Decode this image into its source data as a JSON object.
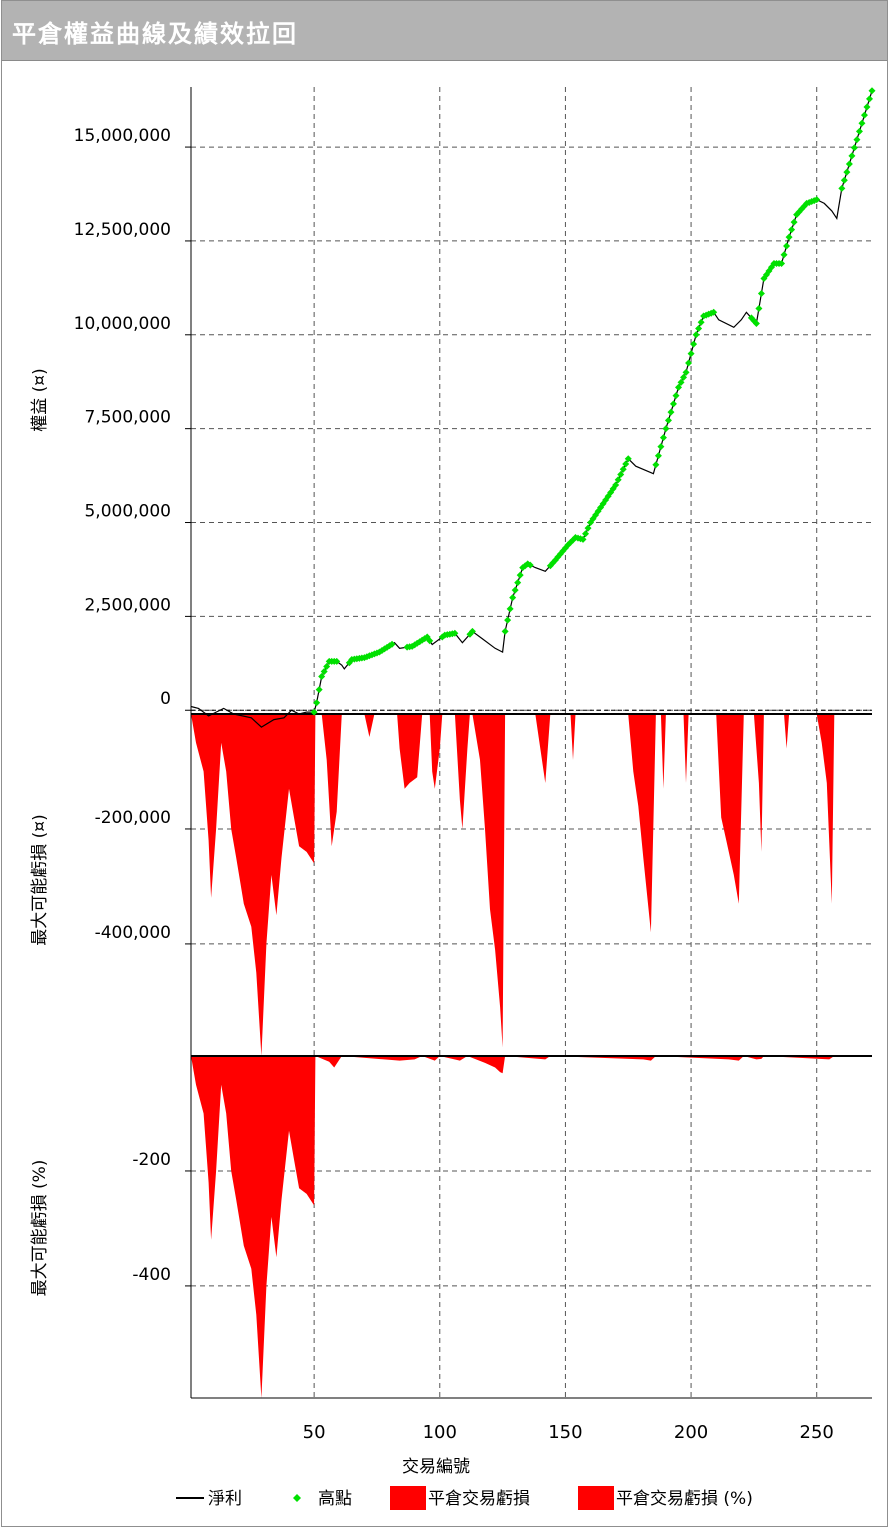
{
  "window": {
    "title": "平倉權益曲線及績效拉回"
  },
  "chart_data": {
    "type": "line",
    "x_axis": {
      "label": "交易編號",
      "min": 1,
      "max": 272,
      "ticks": [
        50,
        100,
        150,
        200,
        250
      ],
      "tick_labels": [
        "50",
        "100",
        "150",
        "200",
        "250"
      ]
    },
    "panels": [
      {
        "name": "equity",
        "ylabel": "權益 (¤)",
        "ylim": [
          -100000,
          16600000
        ],
        "ticks": [
          0,
          2500000,
          5000000,
          7500000,
          10000000,
          12500000,
          15000000
        ],
        "tick_labels": [
          "0",
          "2,500,000",
          "5,000,000",
          "7,500,000",
          "10,000,000",
          "12,500,000",
          "15,000,000"
        ]
      },
      {
        "name": "max_drawdown_amount",
        "ylabel": "最大可能虧損 (¤)",
        "ylim": [
          -595000,
          0
        ],
        "ticks": [
          -200000,
          -400000
        ],
        "tick_labels": [
          "-200,000",
          "-400,000"
        ]
      },
      {
        "name": "max_drawdown_percent",
        "ylabel": "最大可能虧損 (%)",
        "ylim": [
          -595,
          0
        ],
        "ticks": [
          -200,
          -400
        ],
        "tick_labels": [
          "-200",
          "-400"
        ]
      }
    ],
    "equity_path": [
      [
        1,
        100000
      ],
      [
        4,
        50000
      ],
      [
        8,
        -150000
      ],
      [
        14,
        50000
      ],
      [
        18,
        -100000
      ],
      [
        25,
        -200000
      ],
      [
        29,
        -450000
      ],
      [
        34,
        -250000
      ],
      [
        38,
        -200000
      ],
      [
        41,
        0
      ],
      [
        44,
        -100000
      ],
      [
        47,
        -50000
      ],
      [
        50,
        -50000
      ],
      [
        51,
        200000
      ],
      [
        53,
        900000
      ],
      [
        56,
        1300000
      ],
      [
        59,
        1300000
      ],
      [
        61,
        1200000
      ],
      [
        62,
        1100000
      ],
      [
        65,
        1350000
      ],
      [
        70,
        1400000
      ],
      [
        76,
        1550000
      ],
      [
        82,
        1800000
      ],
      [
        84,
        1650000
      ],
      [
        89,
        1700000
      ],
      [
        95,
        1950000
      ],
      [
        97,
        1750000
      ],
      [
        102,
        2000000
      ],
      [
        106,
        2050000
      ],
      [
        109,
        1800000
      ],
      [
        113,
        2100000
      ],
      [
        117,
        1900000
      ],
      [
        122,
        1650000
      ],
      [
        125,
        1550000
      ],
      [
        126,
        2100000
      ],
      [
        129,
        3000000
      ],
      [
        133,
        3800000
      ],
      [
        135,
        3900000
      ],
      [
        138,
        3800000
      ],
      [
        142,
        3700000
      ],
      [
        146,
        4000000
      ],
      [
        151,
        4400000
      ],
      [
        154,
        4600000
      ],
      [
        157,
        4550000
      ],
      [
        160,
        5000000
      ],
      [
        165,
        5500000
      ],
      [
        170,
        6000000
      ],
      [
        175,
        6700000
      ],
      [
        178,
        6500000
      ],
      [
        185,
        6300000
      ],
      [
        190,
        7500000
      ],
      [
        195,
        8600000
      ],
      [
        198,
        9000000
      ],
      [
        202,
        10000000
      ],
      [
        205,
        10500000
      ],
      [
        209,
        10600000
      ],
      [
        211,
        10400000
      ],
      [
        217,
        10200000
      ],
      [
        220,
        10400000
      ],
      [
        222,
        10600000
      ],
      [
        226,
        10300000
      ],
      [
        229,
        11500000
      ],
      [
        233,
        11900000
      ],
      [
        236,
        11900000
      ],
      [
        239,
        12600000
      ],
      [
        242,
        13200000
      ],
      [
        246,
        13500000
      ],
      [
        250,
        13600000
      ],
      [
        253,
        13500000
      ],
      [
        256,
        13300000
      ],
      [
        258,
        13100000
      ],
      [
        260,
        13900000
      ],
      [
        266,
        15200000
      ],
      [
        272,
        16500000
      ]
    ],
    "new_high_ranges": [
      [
        50,
        59
      ],
      [
        64,
        81
      ],
      [
        87,
        96
      ],
      [
        101,
        106
      ],
      [
        112,
        113
      ],
      [
        126,
        136
      ],
      [
        144,
        175
      ],
      [
        186,
        209
      ],
      [
        224,
        250
      ],
      [
        260,
        272
      ]
    ],
    "drawdown_amount_path": [
      [
        1,
        0
      ],
      [
        3,
        -50000
      ],
      [
        6,
        -100000
      ],
      [
        8,
        -220000
      ],
      [
        9,
        -320000
      ],
      [
        11,
        -200000
      ],
      [
        13,
        -50000
      ],
      [
        15,
        -100000
      ],
      [
        17,
        -200000
      ],
      [
        19,
        -250000
      ],
      [
        22,
        -330000
      ],
      [
        25,
        -370000
      ],
      [
        27,
        -450000
      ],
      [
        29,
        -595000
      ],
      [
        31,
        -400000
      ],
      [
        33,
        -280000
      ],
      [
        35,
        -350000
      ],
      [
        37,
        -250000
      ],
      [
        40,
        -130000
      ],
      [
        42,
        -180000
      ],
      [
        44,
        -230000
      ],
      [
        47,
        -240000
      ],
      [
        50,
        -260000
      ],
      [
        50.5,
        0
      ],
      [
        53,
        0
      ],
      [
        55,
        -80000
      ],
      [
        57,
        -230000
      ],
      [
        59,
        -170000
      ],
      [
        61,
        0
      ],
      [
        70,
        0
      ],
      [
        72,
        -40000
      ],
      [
        74,
        0
      ],
      [
        83,
        0
      ],
      [
        84,
        -60000
      ],
      [
        86,
        -130000
      ],
      [
        88,
        -120000
      ],
      [
        91,
        -110000
      ],
      [
        93,
        0
      ],
      [
        96,
        0
      ],
      [
        97,
        -100000
      ],
      [
        98,
        -130000
      ],
      [
        100,
        -60000
      ],
      [
        101,
        0
      ],
      [
        106,
        0
      ],
      [
        108,
        -150000
      ],
      [
        109,
        -200000
      ],
      [
        111,
        -60000
      ],
      [
        112,
        0
      ],
      [
        113,
        0
      ],
      [
        116,
        -80000
      ],
      [
        118,
        -200000
      ],
      [
        120,
        -340000
      ],
      [
        122,
        -410000
      ],
      [
        124,
        -510000
      ],
      [
        125,
        -580000
      ],
      [
        126,
        0
      ],
      [
        138,
        0
      ],
      [
        140,
        -60000
      ],
      [
        142,
        -120000
      ],
      [
        144,
        0
      ],
      [
        152,
        0
      ],
      [
        153,
        -80000
      ],
      [
        154,
        0
      ],
      [
        175,
        0
      ],
      [
        177,
        -100000
      ],
      [
        179,
        -160000
      ],
      [
        181,
        -250000
      ],
      [
        184,
        -380000
      ],
      [
        186,
        0
      ],
      [
        188,
        0
      ],
      [
        189,
        -130000
      ],
      [
        190,
        0
      ],
      [
        197,
        0
      ],
      [
        198,
        -120000
      ],
      [
        199,
        0
      ],
      [
        210,
        0
      ],
      [
        212,
        -180000
      ],
      [
        214,
        -220000
      ],
      [
        217,
        -280000
      ],
      [
        219,
        -330000
      ],
      [
        221,
        0
      ],
      [
        225,
        0
      ],
      [
        227,
        -120000
      ],
      [
        228,
        -240000
      ],
      [
        229,
        0
      ],
      [
        237,
        0
      ],
      [
        238,
        -60000
      ],
      [
        239,
        0
      ],
      [
        250,
        0
      ],
      [
        252,
        -50000
      ],
      [
        254,
        -120000
      ],
      [
        256,
        -330000
      ],
      [
        257,
        0
      ],
      [
        272,
        0
      ]
    ],
    "drawdown_percent_path": [
      [
        1,
        0
      ],
      [
        3,
        -50
      ],
      [
        6,
        -100
      ],
      [
        8,
        -220
      ],
      [
        9,
        -320
      ],
      [
        11,
        -200
      ],
      [
        13,
        -50
      ],
      [
        15,
        -100
      ],
      [
        17,
        -200
      ],
      [
        19,
        -250
      ],
      [
        22,
        -330
      ],
      [
        25,
        -370
      ],
      [
        27,
        -450
      ],
      [
        29,
        -595
      ],
      [
        31,
        -400
      ],
      [
        33,
        -280
      ],
      [
        35,
        -350
      ],
      [
        37,
        -250
      ],
      [
        40,
        -130
      ],
      [
        42,
        -180
      ],
      [
        44,
        -230
      ],
      [
        47,
        -240
      ],
      [
        50,
        -260
      ],
      [
        50.5,
        0
      ],
      [
        56,
        -10
      ],
      [
        58,
        -20
      ],
      [
        61,
        0
      ],
      [
        84,
        -8
      ],
      [
        90,
        -6
      ],
      [
        93,
        0
      ],
      [
        98,
        -8
      ],
      [
        100,
        0
      ],
      [
        108,
        -8
      ],
      [
        111,
        0
      ],
      [
        118,
        -12
      ],
      [
        122,
        -20
      ],
      [
        124,
        -28
      ],
      [
        125,
        -30
      ],
      [
        126,
        0
      ],
      [
        142,
        -6
      ],
      [
        144,
        0
      ],
      [
        181,
        -6
      ],
      [
        184,
        -8
      ],
      [
        186,
        0
      ],
      [
        215,
        -6
      ],
      [
        219,
        -8
      ],
      [
        221,
        0
      ],
      [
        226,
        -6
      ],
      [
        228,
        -5
      ],
      [
        229,
        0
      ],
      [
        255,
        -6
      ],
      [
        257,
        0
      ],
      [
        272,
        0
      ]
    ],
    "series": [
      {
        "name": "淨利",
        "color": "#000000"
      },
      {
        "name": "高點",
        "color": "#00e000"
      },
      {
        "name": "平倉交易虧損",
        "color": "#ff0000"
      },
      {
        "name": "平倉交易虧損 (%)",
        "color": "#ff0000"
      }
    ],
    "grid": true,
    "legend_position": "bottom"
  }
}
